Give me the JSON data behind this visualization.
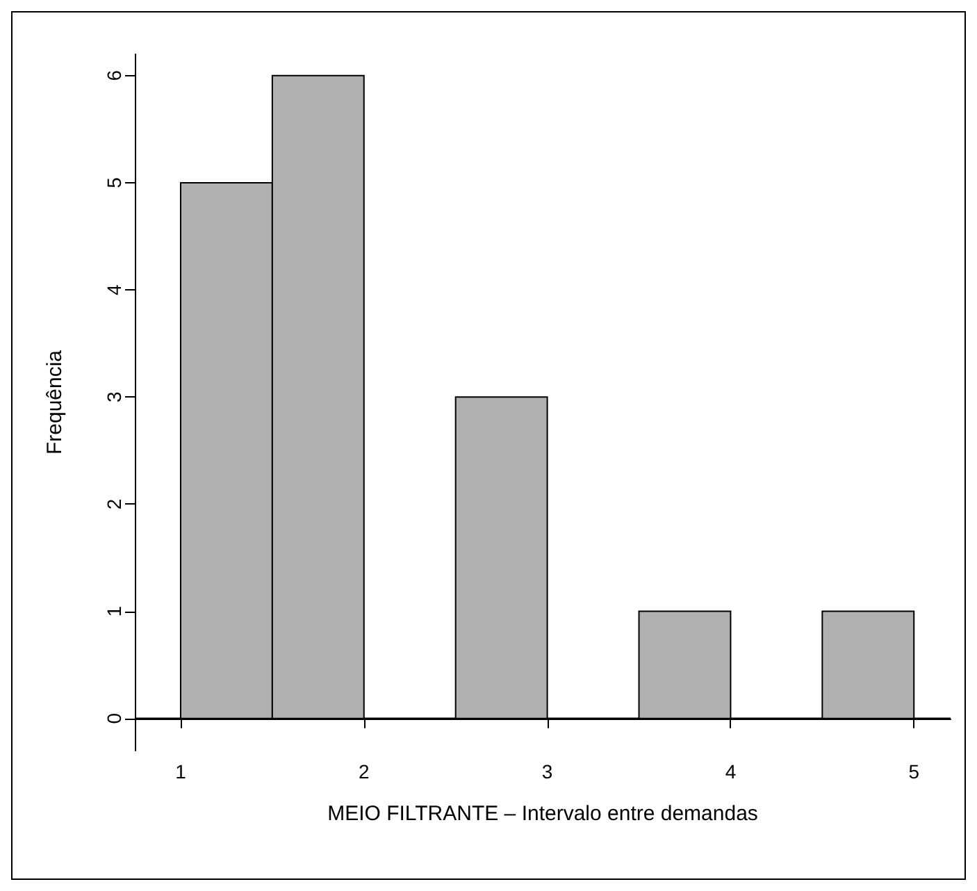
{
  "chart_data": {
    "type": "histogram",
    "xlabel": "MEIO FILTRANTE – Intervalo entre demandas",
    "ylabel": "Frequência",
    "bins": [
      1,
      1.5,
      2,
      2.5,
      3,
      3.5,
      4,
      4.5,
      5
    ],
    "values": [
      5,
      6,
      0,
      3,
      0,
      1,
      0,
      1
    ],
    "color": "#b0b0b0",
    "xlim": [
      0.75,
      5.2
    ],
    "ylim": [
      -0.3,
      6.2
    ],
    "xticks": [
      1,
      2,
      3,
      4,
      5
    ],
    "yticks": [
      0,
      1,
      2,
      3,
      4,
      5,
      6
    ],
    "ref_lines": [
      {
        "axis": "y",
        "value": 0,
        "color": "#000000"
      }
    ],
    "grid": false
  }
}
